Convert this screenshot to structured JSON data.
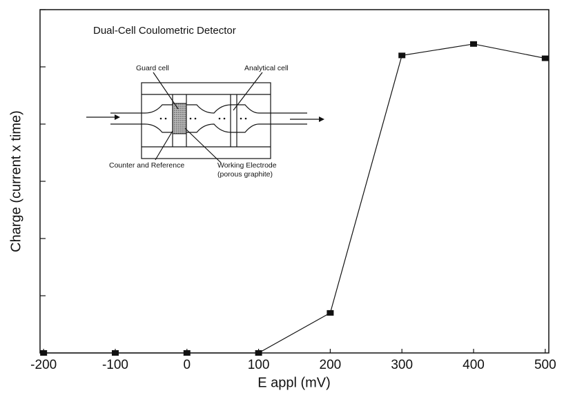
{
  "chart_data": {
    "type": "line",
    "title": "Dual-Cell Coulometric Detector",
    "x_label": "E appl (mV)",
    "y_label": "Charge (current x time)",
    "x": [
      -200,
      -100,
      0,
      100,
      200,
      300,
      400,
      500
    ],
    "series": [
      {
        "color": "#111111",
        "values": [
          0,
          0,
          0,
          0,
          0.7,
          5.2,
          5.4,
          5.15
        ]
      }
    ],
    "xlim": [
      -205,
      505
    ],
    "xticks": [
      -200,
      -100,
      0,
      100,
      200,
      300,
      400,
      500
    ],
    "ylim": [
      0,
      6
    ],
    "yticks": [
      0,
      1,
      2,
      3,
      4,
      5,
      6
    ],
    "ytick_labels": false,
    "grid": false,
    "inset_labels": [
      "Guard cell",
      "Analytical cell",
      "Counter and Reference",
      "Working Electrode",
      "(porous graphite)"
    ]
  }
}
